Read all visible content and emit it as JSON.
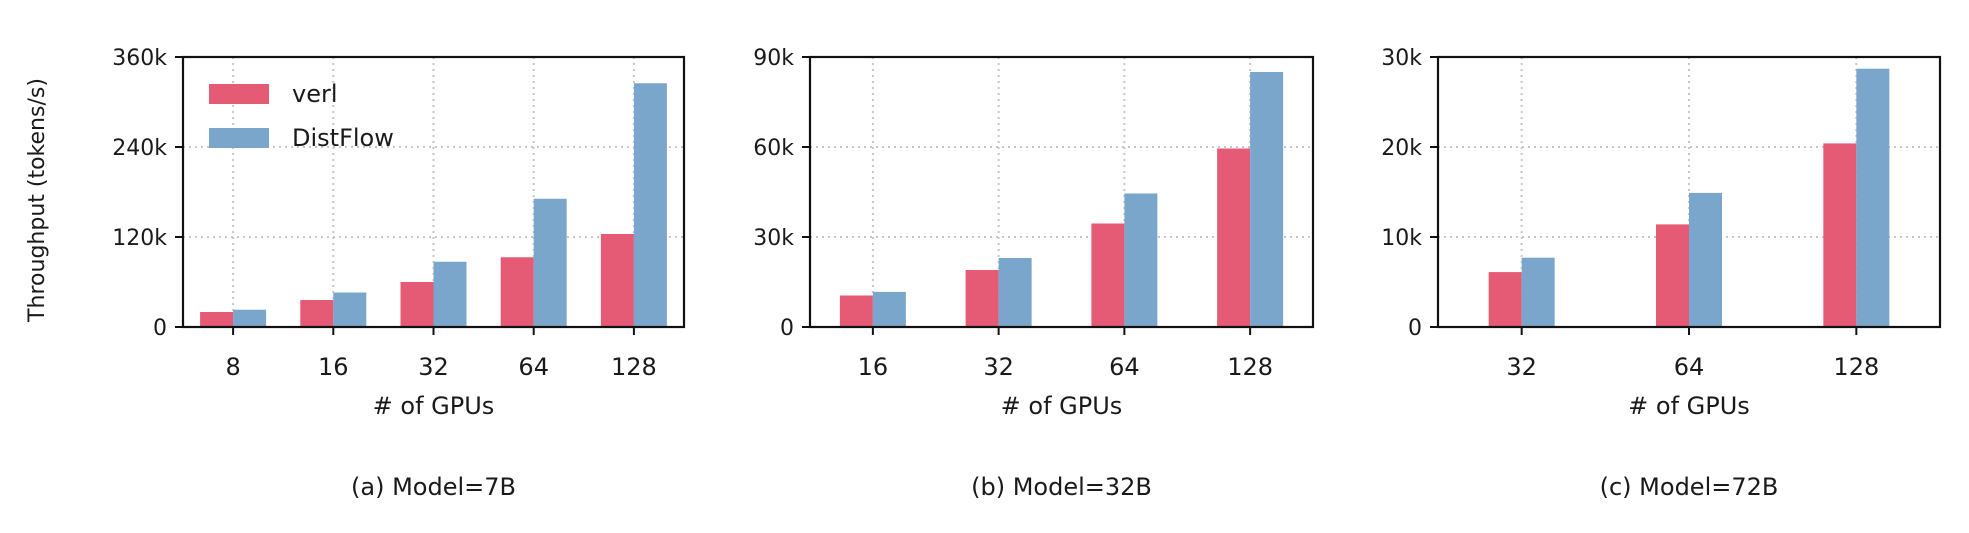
{
  "figure": {
    "ylabel": "Throughput (tokens/s)",
    "legend": [
      "verl",
      "DistFlow"
    ],
    "colors": {
      "verl": "#E55A75",
      "DistFlow": "#7BA6CB"
    }
  },
  "chart_data": [
    {
      "type": "bar",
      "caption": "(a) Model=7B",
      "xlabel": "# of GPUs",
      "ylabel": "Throughput (tokens/s)",
      "categories": [
        "8",
        "16",
        "32",
        "64",
        "128"
      ],
      "series": [
        {
          "name": "verl",
          "values": [
            20000,
            36000,
            60000,
            93000,
            124000
          ]
        },
        {
          "name": "DistFlow",
          "values": [
            23000,
            46000,
            87000,
            171000,
            325000
          ]
        }
      ],
      "ylim": [
        0,
        360000
      ],
      "yticks": [
        0,
        120000,
        240000,
        360000
      ],
      "ytick_labels": [
        "0",
        "120k",
        "240k",
        "360k"
      ],
      "grid": true,
      "legend_position": "top-left"
    },
    {
      "type": "bar",
      "caption": "(b) Model=32B",
      "xlabel": "# of GPUs",
      "categories": [
        "16",
        "32",
        "64",
        "128"
      ],
      "series": [
        {
          "name": "verl",
          "values": [
            10500,
            19000,
            34500,
            59500
          ]
        },
        {
          "name": "DistFlow",
          "values": [
            11700,
            23000,
            44500,
            85000
          ]
        }
      ],
      "ylim": [
        0,
        90000
      ],
      "yticks": [
        0,
        30000,
        60000,
        90000
      ],
      "ytick_labels": [
        "0",
        "30k",
        "60k",
        "90k"
      ],
      "grid": true
    },
    {
      "type": "bar",
      "caption": "(c) Model=72B",
      "xlabel": "# of GPUs",
      "categories": [
        "32",
        "64",
        "128"
      ],
      "series": [
        {
          "name": "verl",
          "values": [
            6100,
            11400,
            20400
          ]
        },
        {
          "name": "DistFlow",
          "values": [
            7700,
            14900,
            28700
          ]
        }
      ],
      "ylim": [
        0,
        30000
      ],
      "yticks": [
        0,
        10000,
        20000,
        30000
      ],
      "ytick_labels": [
        "0",
        "10k",
        "20k",
        "30k"
      ],
      "grid": true
    }
  ]
}
